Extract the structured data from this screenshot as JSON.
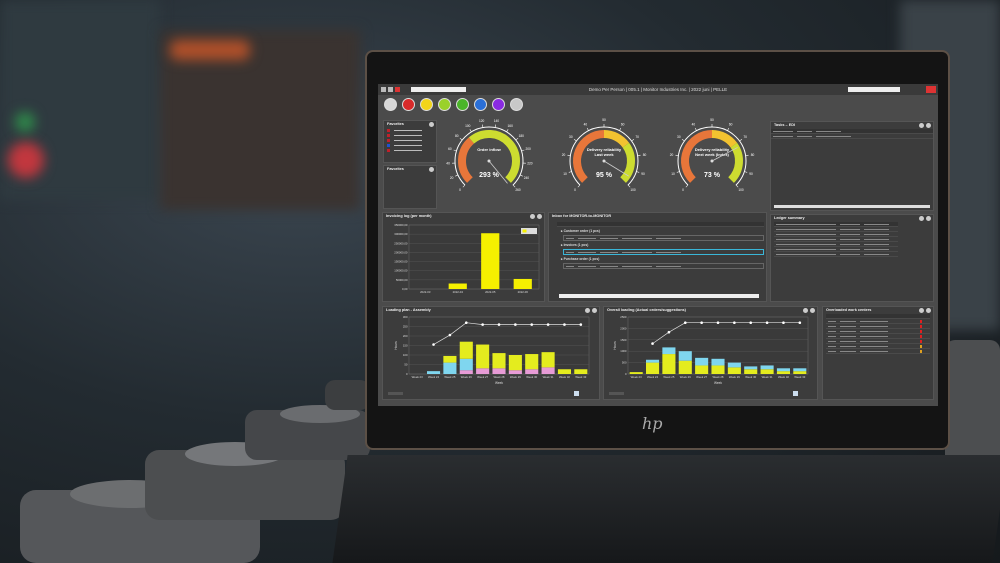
{
  "window": {
    "title": "Demo Per Person | 005.1 | Monitor Industries Inc. | 2022 juni | PELLE"
  },
  "toolbar": {
    "icons": [
      {
        "name": "menu-icon",
        "color": "#d8d8d8"
      },
      {
        "name": "factory-icon",
        "color": "#d92b2b"
      },
      {
        "name": "cart-icon",
        "color": "#f2d51a"
      },
      {
        "name": "truck-icon",
        "color": "#9ad12a"
      },
      {
        "name": "plant-icon",
        "color": "#4bb52a"
      },
      {
        "name": "finance-icon",
        "color": "#2a6fd8"
      },
      {
        "name": "calculator-icon",
        "color": "#8a2be2"
      },
      {
        "name": "settings-icon",
        "color": "#c8c8c8"
      }
    ]
  },
  "favorites": [
    {
      "title": "Favorites",
      "items": [
        {
          "color": "#c0202a"
        },
        {
          "color": "#c0202a"
        },
        {
          "color": "#c0202a"
        },
        {
          "color": "#2050d0"
        },
        {
          "color": "#c0202a"
        }
      ]
    },
    {
      "title": "Favorites",
      "items": []
    }
  ],
  "gauges": [
    {
      "label_line1": "Order inflow",
      "label_line2": "",
      "value_text": "293 %",
      "value": 293,
      "max": 260,
      "ticks": [
        "0",
        "20",
        "40",
        "60",
        "80",
        "100",
        "120",
        "140",
        "160",
        "180",
        "200",
        "220",
        "240",
        "260"
      ],
      "bands": [
        {
          "to": 0.35,
          "color": "#e8763a"
        },
        {
          "to": 1,
          "color": "#cddc30"
        }
      ]
    },
    {
      "label_line1": "Delivery reliability",
      "label_line2": "Last week",
      "value_text": "95 %",
      "value": 95,
      "max": 100,
      "ticks": [
        "0",
        "10",
        "20",
        "30",
        "40",
        "50",
        "60",
        "70",
        "80",
        "90",
        "100"
      ],
      "bands": [
        {
          "to": 0.5,
          "color": "#e8763a"
        },
        {
          "to": 0.7,
          "color": "#f2c230"
        },
        {
          "to": 1,
          "color": "#cddc30"
        }
      ]
    },
    {
      "label_line1": "Delivery reliability",
      "label_line2": "Next week (Index)",
      "value_text": "73 %",
      "value": 73,
      "max": 100,
      "ticks": [
        "0",
        "10",
        "20",
        "30",
        "40",
        "50",
        "60",
        "70",
        "80",
        "90",
        "100"
      ],
      "bands": [
        {
          "to": 0.5,
          "color": "#e8763a"
        },
        {
          "to": 0.7,
          "color": "#f2c230"
        },
        {
          "to": 1,
          "color": "#cddc30"
        }
      ]
    }
  ],
  "tasks": {
    "title": "Tasks – EDI"
  },
  "invoicing": {
    "title": "Invoicing log (per month)"
  },
  "inbox": {
    "title": "Inbox for MONITOR-to-MONITOR",
    "groups": [
      "Customer order (1 pcs)",
      "Invoices (1 pcs)",
      "Purchase order (1 pcs)"
    ]
  },
  "ledger": {
    "title": "Ledger summary"
  },
  "loading": {
    "title": "Loading plan - Assembly"
  },
  "overall": {
    "title": "Overall loading (Actual orders/suggestions)"
  },
  "overloaded": {
    "title": "Overloaded work centers",
    "status": [
      "#e02020",
      "#e02020",
      "#e02020",
      "#e02020",
      "#e02020",
      "#e0a020",
      "#e0a020"
    ]
  },
  "chart_data": [
    {
      "type": "bar",
      "title": "Invoicing log (per month)",
      "categories": [
        "2022-03",
        "2022-04",
        "2022-05",
        "2022-06"
      ],
      "values": [
        0,
        30000,
        305000,
        55000
      ],
      "ylim": [
        0,
        350000
      ],
      "yticks": [
        "0,00",
        "50000,00",
        "100000,00",
        "150000,00",
        "200000,00",
        "250000,00",
        "300000,00",
        "350000,00"
      ],
      "colors": {
        "bar": "#f5f000"
      }
    },
    {
      "type": "bar",
      "title": "Loading plan - Assembly",
      "xlabel": "Week",
      "ylabel": "Hours",
      "ylim": [
        0,
        300
      ],
      "yticks": [
        "0",
        "50",
        "100",
        "150",
        "200",
        "250",
        "300"
      ],
      "categories": [
        "Week 23",
        "Week 24",
        "Week 25",
        "Week 26",
        "Week 27",
        "Week 28",
        "Week 29",
        "Week 30",
        "Week 31",
        "Week 32",
        "Week 33"
      ],
      "series": [
        {
          "color": "#e79bd6",
          "values": [
            0,
            0,
            0,
            20,
            30,
            30,
            20,
            25,
            35,
            0,
            0
          ]
        },
        {
          "color": "#7fd6ef",
          "values": [
            0,
            15,
            60,
            60,
            0,
            0,
            0,
            0,
            0,
            0,
            0
          ]
        },
        {
          "color": "#e4ec1e",
          "values": [
            0,
            0,
            35,
            90,
            125,
            80,
            80,
            80,
            80,
            25,
            25
          ]
        }
      ],
      "line": [
        null,
        155,
        205,
        270,
        260,
        260,
        260,
        260,
        260,
        260,
        260
      ]
    },
    {
      "type": "bar",
      "title": "Overall loading (Actual orders/suggestions)",
      "xlabel": "Week",
      "ylabel": "Hours",
      "ylim": [
        0,
        3000
      ],
      "yticks": [
        "0",
        "500",
        "1000",
        "1500",
        "2000",
        "2500"
      ],
      "categories": [
        "Week 23",
        "Week 24",
        "Week 25",
        "Week 26",
        "Week 27",
        "Week 28",
        "Week 29",
        "Week 30",
        "Week 31",
        "Week 32",
        "Week 33"
      ],
      "series": [
        {
          "color": "#e4ec1e",
          "values": [
            100,
            600,
            1050,
            700,
            450,
            450,
            350,
            250,
            250,
            150,
            150
          ]
        },
        {
          "color": "#7fd6ef",
          "values": [
            0,
            150,
            350,
            500,
            400,
            350,
            250,
            150,
            200,
            150,
            150
          ]
        }
      ],
      "line": [
        null,
        1600,
        2200,
        2700,
        2700,
        2700,
        2700,
        2700,
        2700,
        2700,
        2700
      ]
    }
  ]
}
